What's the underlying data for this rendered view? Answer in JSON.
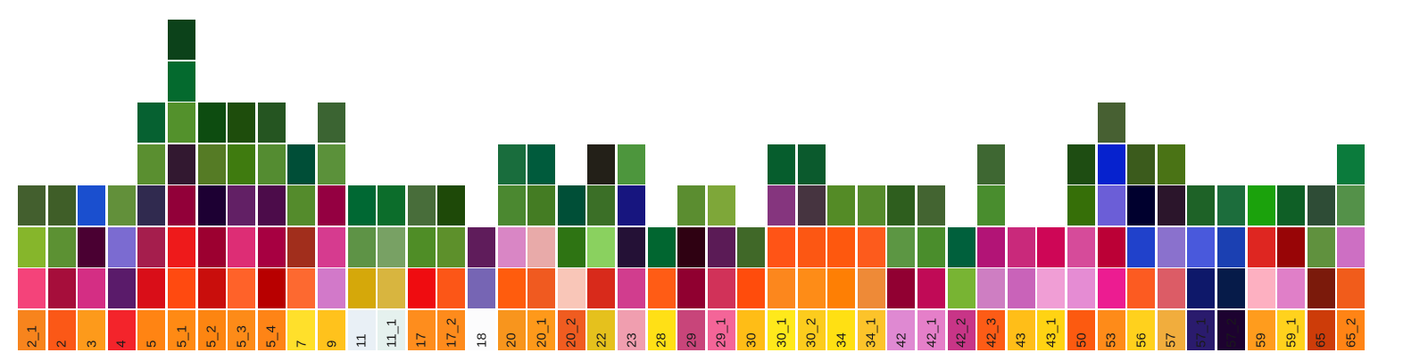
{
  "swatches": [
    {
      "label": "2_1",
      "colors": [
        "#f7841d",
        "#f4437a",
        "#86b62b",
        "#435f2e"
      ]
    },
    {
      "label": "2",
      "colors": [
        "#fb5817",
        "#a60e3b",
        "#5c9133",
        "#3f5e28"
      ]
    },
    {
      "label": "3",
      "colors": [
        "#fd9a1b",
        "#d42e84",
        "#4a0032",
        "#1a4fcf"
      ]
    },
    {
      "label": "4",
      "colors": [
        "#f3242b",
        "#5a1b6a",
        "#7b6bd1",
        "#62903a"
      ]
    },
    {
      "label": "5",
      "colors": [
        "#ff8413",
        "#d90e18",
        "#a51e4d",
        "#302a4f",
        "#5a8f30",
        "#066131"
      ]
    },
    {
      "label": "5_1",
      "colors": [
        "#ff8a14",
        "#ff4a10",
        "#ee1a1b",
        "#920039",
        "#321830",
        "#53912c",
        "#046a2e",
        "#0c421a"
      ]
    },
    {
      "label": "5_2",
      "colors": [
        "#fd8511",
        "#c90e0c",
        "#9c0030",
        "#1d0033",
        "#557b25",
        "#0d4c10"
      ]
    },
    {
      "label": "5_3",
      "colors": [
        "#fd8b18",
        "#ff6229",
        "#dd2d75",
        "#622065",
        "#3f7b0f",
        "#1e4d0c"
      ]
    },
    {
      "label": "5_4",
      "colors": [
        "#fe8416",
        "#b80000",
        "#a70041",
        "#4c0c4a",
        "#548c31",
        "#255521"
      ]
    },
    {
      "label": "7",
      "colors": [
        "#ffe02b",
        "#fd6930",
        "#a12e1c",
        "#548b2c",
        "#004e37"
      ]
    },
    {
      "label": "9",
      "colors": [
        "#ffc21c",
        "#d279c9",
        "#d63b8f",
        "#940041",
        "#5b913a",
        "#3b6432"
      ]
    },
    {
      "label": "11",
      "colors": [
        "#e9f0f6",
        "#d5a80a",
        "#5e9346",
        "#006833"
      ]
    },
    {
      "label": "11_1",
      "colors": [
        "#e5f1ee",
        "#d8b53f",
        "#78a164",
        "#0c6d2b"
      ]
    },
    {
      "label": "17",
      "colors": [
        "#fe8d1d",
        "#ef0c10",
        "#4f8d26",
        "#486d3a"
      ]
    },
    {
      "label": "17_2",
      "colors": [
        "#fe8b1c",
        "#fc5617",
        "#5d902b",
        "#1e4908"
      ]
    },
    {
      "label": "18",
      "colors": [
        "#fcfcfd",
        "#7665b4",
        "#5f1c5b"
      ]
    },
    {
      "label": "20",
      "colors": [
        "#f8951d",
        "#ff5c0d",
        "#d986c5",
        "#4b8830",
        "#196d3d"
      ]
    },
    {
      "label": "20_1",
      "colors": [
        "#fe991a",
        "#f05a20",
        "#e8aaa9",
        "#447c23",
        "#005b3c"
      ]
    },
    {
      "label": "20_2",
      "colors": [
        "#f05c20",
        "#f9c6b8",
        "#2e7413",
        "#004f37"
      ]
    },
    {
      "label": "22",
      "colors": [
        "#e5c11d",
        "#d82a1b",
        "#8ad15f",
        "#3b6f27",
        "#232018"
      ]
    },
    {
      "label": "23",
      "colors": [
        "#f09eaf",
        "#d13d8e",
        "#241136",
        "#17157f",
        "#4d963d"
      ]
    },
    {
      "label": "28",
      "colors": [
        "#ffe016",
        "#ff5c15",
        "#016630"
      ]
    },
    {
      "label": "29",
      "colors": [
        "#c8457a",
        "#900030",
        "#2f0112",
        "#5b8d30"
      ]
    },
    {
      "label": "29_1",
      "colors": [
        "#f46598",
        "#d13259",
        "#5b1b56",
        "#7ea739"
      ]
    },
    {
      "label": "30",
      "colors": [
        "#ffbd16",
        "#ff4c0c",
        "#406828"
      ]
    },
    {
      "label": "30_1",
      "colors": [
        "#ffe91b",
        "#fc871d",
        "#ff5416",
        "#85357e",
        "#065d2d"
      ]
    },
    {
      "label": "30_2",
      "colors": [
        "#fccc1d",
        "#fe8c17",
        "#fc5713",
        "#463440",
        "#0b5a2d"
      ]
    },
    {
      "label": "34",
      "colors": [
        "#ffe013",
        "#fe7f04",
        "#fe580e",
        "#548b26"
      ]
    },
    {
      "label": "34_1",
      "colors": [
        "#fcc32a",
        "#ee8a37",
        "#fd5b1c",
        "#558b2c"
      ]
    },
    {
      "label": "42",
      "colors": [
        "#df89d2",
        "#910032",
        "#5c9643",
        "#2e5e1e"
      ]
    },
    {
      "label": "42_1",
      "colors": [
        "#e57fc9",
        "#c00a56",
        "#4a8d2c",
        "#436431"
      ]
    },
    {
      "label": "42_2",
      "colors": [
        "#c83587",
        "#78b433",
        "#00603c"
      ]
    },
    {
      "label": "42_3",
      "colors": [
        "#fd5c16",
        "#ce7ec2",
        "#b21476",
        "#498d2e",
        "#3e6732"
      ]
    },
    {
      "label": "43",
      "colors": [
        "#ffbe18",
        "#c963b9",
        "#c9297b"
      ]
    },
    {
      "label": "43_1",
      "colors": [
        "#ffd313",
        "#f09ed5",
        "#ce0656"
      ]
    },
    {
      "label": "50",
      "colors": [
        "#fc5a10",
        "#e58cd3",
        "#d64b9a",
        "#366f08",
        "#1e4d12"
      ]
    },
    {
      "label": "53",
      "colors": [
        "#fe8b19",
        "#ec1c91",
        "#bb0036",
        "#6b5ed7",
        "#0622ce",
        "#476032"
      ]
    },
    {
      "label": "56",
      "colors": [
        "#ffd11d",
        "#fc5b21",
        "#2041cb",
        "#00002e",
        "#3b5b1c"
      ]
    },
    {
      "label": "57",
      "colors": [
        "#f1ad3d",
        "#dc5c66",
        "#8a71cd",
        "#2b152b",
        "#4a7315"
      ]
    },
    {
      "label": "57_1",
      "colors": [
        "#2a1b6d",
        "#0e186a",
        "#4959dc",
        "#1e6227"
      ]
    },
    {
      "label": "57_2",
      "colors": [
        "#1d0230",
        "#061b49",
        "#1b40b2",
        "#1c6d3c"
      ]
    },
    {
      "label": "59",
      "colors": [
        "#ff9c1d",
        "#fdb0c1",
        "#de2621",
        "#1ba20c"
      ]
    },
    {
      "label": "59_1",
      "colors": [
        "#ffd21d",
        "#e07fc8",
        "#980506",
        "#0f5f26"
      ]
    },
    {
      "label": "65",
      "colors": [
        "#cd3c09",
        "#7b1a0b",
        "#60913e",
        "#2e4c36"
      ]
    },
    {
      "label": "65_2",
      "colors": [
        "#ff8415",
        "#f15c1b",
        "#cd6fc3",
        "#549149",
        "#0b7b3c"
      ]
    }
  ]
}
